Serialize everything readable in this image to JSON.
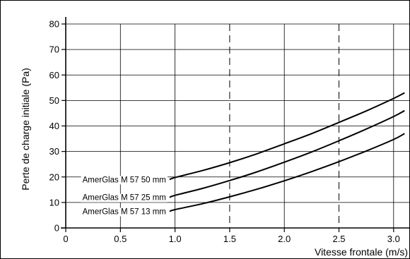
{
  "chart_data": {
    "type": "line",
    "xlabel": "Vitesse frontale (m/s)",
    "ylabel": "Perte de charge initiale (Pa)",
    "xlim": [
      0,
      3.15
    ],
    "ylim": [
      0,
      80
    ],
    "xticks": [
      "0",
      "0.5",
      "1.0",
      "1.5",
      "2.0",
      "2.5",
      "3.0"
    ],
    "xtick_values": [
      0,
      0.5,
      1.0,
      1.5,
      2.0,
      2.5,
      3.0
    ],
    "yticks": [
      "0",
      "10",
      "20",
      "30",
      "40",
      "50",
      "60",
      "70",
      "80"
    ],
    "ytick_values": [
      0,
      10,
      20,
      30,
      40,
      50,
      60,
      70,
      80
    ],
    "dashed_x": [
      1.5,
      2.5
    ],
    "grid": true,
    "series": [
      {
        "name": "AmerGlas M 57 50 mm",
        "x": [
          0.95,
          1.0,
          1.25,
          1.5,
          1.75,
          2.0,
          2.25,
          2.5,
          2.75,
          3.0,
          3.1
        ],
        "y": [
          19,
          19.8,
          22.5,
          25.6,
          29.1,
          33,
          37,
          41.4,
          45.9,
          50.8,
          53
        ]
      },
      {
        "name": "AmerGlas M 57 25 mm",
        "x": [
          0.95,
          1.0,
          1.25,
          1.5,
          1.75,
          2.0,
          2.25,
          2.5,
          2.75,
          3.0,
          3.1
        ],
        "y": [
          12,
          12.8,
          15.5,
          18.6,
          22,
          25.8,
          29.8,
          34.2,
          38.8,
          43.7,
          46
        ]
      },
      {
        "name": "AmerGlas M 57 13 mm",
        "x": [
          0.95,
          1.0,
          1.25,
          1.5,
          1.75,
          2.0,
          2.25,
          2.5,
          2.75,
          3.0,
          3.1
        ],
        "y": [
          6.5,
          7.2,
          9.5,
          12.2,
          15.2,
          18.5,
          22.1,
          26,
          30.2,
          34.7,
          37
        ]
      }
    ]
  }
}
